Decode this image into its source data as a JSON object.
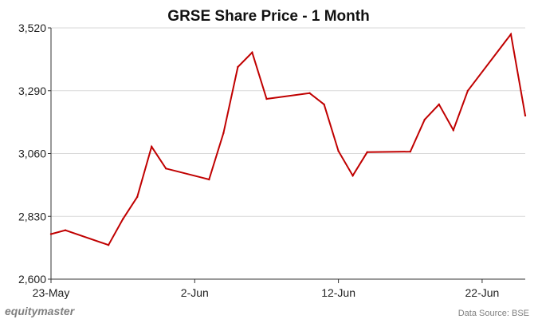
{
  "chart_data": {
    "type": "line",
    "title": "GRSE Share Price - 1 Month",
    "xlabel": "",
    "ylabel": "",
    "x": [
      "2023-05-23",
      "2023-05-24",
      "2023-05-27",
      "2023-05-28",
      "2023-05-29",
      "2023-05-30",
      "2023-05-31",
      "2023-06-03",
      "2023-06-04",
      "2023-06-05",
      "2023-06-06",
      "2023-06-07",
      "2023-06-10",
      "2023-06-11",
      "2023-06-12",
      "2023-06-13",
      "2023-06-14",
      "2023-06-17",
      "2023-06-18",
      "2023-06-19",
      "2023-06-20",
      "2023-06-21",
      "2023-06-24",
      "2023-06-25"
    ],
    "series": [
      {
        "name": "",
        "color": "#c00000",
        "values": [
          2765,
          2779,
          2725,
          2820,
          2901,
          3085,
          3005,
          2965,
          3135,
          3377,
          3430,
          3260,
          3281,
          3240,
          3069,
          2979,
          3065,
          3067,
          3184,
          3240,
          3146,
          3290,
          3497,
          3199
        ]
      }
    ],
    "xticks": [
      {
        "date": "2023-05-23",
        "label": "23-May"
      },
      {
        "date": "2023-06-02",
        "label": "2-Jun"
      },
      {
        "date": "2023-06-12",
        "label": "12-Jun"
      },
      {
        "date": "2023-06-22",
        "label": "22-Jun"
      }
    ],
    "yticks": [
      2600,
      2830,
      3060,
      3290,
      3520
    ],
    "ytick_labels": [
      "2,600",
      "2,830",
      "3,060",
      "3,290",
      "3,520"
    ],
    "xlim": [
      "2023-05-23",
      "2023-06-25"
    ],
    "ylim": [
      2600,
      3520
    ],
    "grid": true,
    "legend": "none"
  },
  "footer": {
    "brand": "equitymaster",
    "source": "Data Source: BSE"
  }
}
